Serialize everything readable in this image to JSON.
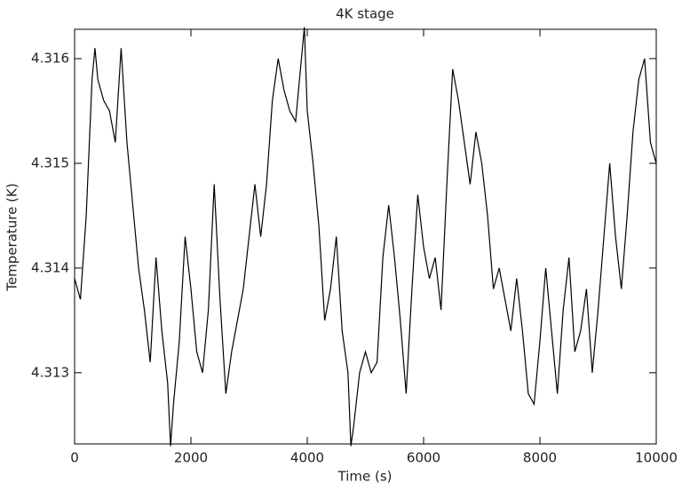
{
  "chart_data": {
    "type": "line",
    "title": "4K stage",
    "x_label": "Time (s)",
    "y_label": "Temperature (K)",
    "x": [
      0,
      100,
      200,
      300,
      350,
      400,
      500,
      600,
      700,
      800,
      900,
      1000,
      1100,
      1200,
      1300,
      1400,
      1500,
      1600,
      1650,
      1700,
      1800,
      1900,
      2000,
      2100,
      2200,
      2300,
      2400,
      2500,
      2600,
      2700,
      2800,
      2900,
      3000,
      3100,
      3200,
      3300,
      3400,
      3500,
      3600,
      3700,
      3800,
      3900,
      3950,
      4000,
      4100,
      4200,
      4300,
      4400,
      4500,
      4600,
      4700,
      4750,
      4800,
      4900,
      5000,
      5100,
      5200,
      5300,
      5400,
      5500,
      5600,
      5700,
      5800,
      5900,
      6000,
      6100,
      6200,
      6300,
      6400,
      6500,
      6600,
      6700,
      6800,
      6900,
      7000,
      7100,
      7200,
      7300,
      7400,
      7500,
      7600,
      7700,
      7800,
      7900,
      8000,
      8100,
      8200,
      8300,
      8400,
      8500,
      8600,
      8700,
      8800,
      8900,
      9000,
      9100,
      9200,
      9300,
      9400,
      9500,
      9600,
      9700,
      9800,
      9900,
      10000
    ],
    "series": [
      {
        "color": "#000000",
        "values": [
          4.3139,
          4.3137,
          4.3145,
          4.3158,
          4.3161,
          4.3158,
          4.3156,
          4.3155,
          4.3152,
          4.3161,
          4.3152,
          4.3146,
          4.314,
          4.3136,
          4.3131,
          4.3141,
          4.3134,
          4.3129,
          4.3123,
          4.3127,
          4.3133,
          4.3143,
          4.3138,
          4.3132,
          4.313,
          4.3136,
          4.3148,
          4.3137,
          4.3128,
          4.3132,
          4.3135,
          4.3138,
          4.3143,
          4.3148,
          4.3143,
          4.3148,
          4.3156,
          4.316,
          4.3157,
          4.3155,
          4.3154,
          4.316,
          4.3163,
          4.3155,
          4.315,
          4.3144,
          4.3135,
          4.3138,
          4.3143,
          4.3134,
          4.313,
          4.3123,
          4.3125,
          4.313,
          4.3132,
          4.313,
          4.3131,
          4.3141,
          4.3146,
          4.3141,
          4.3135,
          4.3128,
          4.3138,
          4.3147,
          4.3142,
          4.3139,
          4.3141,
          4.3136,
          4.3148,
          4.3159,
          4.3156,
          4.3152,
          4.3148,
          4.3153,
          4.315,
          4.3145,
          4.3138,
          4.314,
          4.3137,
          4.3134,
          4.3139,
          4.3134,
          4.3128,
          4.3127,
          4.3133,
          4.314,
          4.3134,
          4.3128,
          4.3136,
          4.3141,
          4.3132,
          4.3134,
          4.3138,
          4.313,
          4.3136,
          4.3143,
          4.315,
          4.3143,
          4.3138,
          4.3145,
          4.3153,
          4.3158,
          4.316,
          4.3152,
          4.315
        ]
      }
    ],
    "xlim": [
      0,
      10000
    ],
    "xticks": [
      0,
      2000,
      4000,
      6000,
      8000,
      10000
    ],
    "ylim": [
      4.31232,
      4.31628
    ],
    "yticks": [
      4.313,
      4.314,
      4.315,
      4.316
    ]
  }
}
